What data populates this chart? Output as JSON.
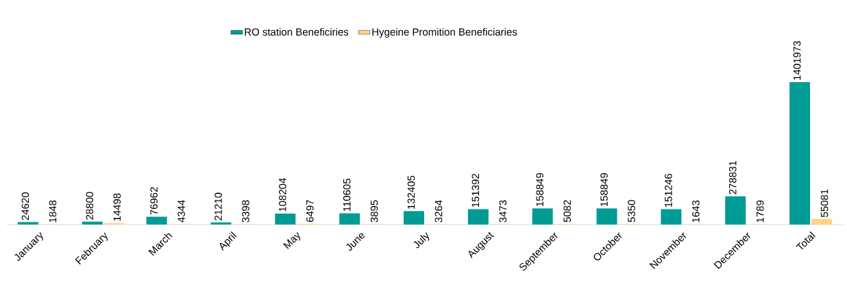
{
  "chart_data": {
    "type": "bar",
    "categories": [
      "January",
      "February",
      "March",
      "April",
      "May",
      "June",
      "July",
      "August",
      "September",
      "October",
      "November",
      "December",
      "Total"
    ],
    "series": [
      {
        "name": "RO station Beneficiries",
        "color": "#009b95",
        "values": [
          24620,
          28800,
          76962,
          21210,
          108204,
          110605,
          132405,
          151392,
          158849,
          158849,
          151246,
          278831,
          1401973
        ]
      },
      {
        "name": "Hygeine Promition Beneficiaries",
        "color": "#ffd285",
        "values": [
          1848,
          14498,
          4344,
          3398,
          6497,
          3895,
          3264,
          3473,
          5082,
          5350,
          1643,
          1789,
          55081
        ]
      }
    ],
    "data_labels": true,
    "legend": "top"
  }
}
